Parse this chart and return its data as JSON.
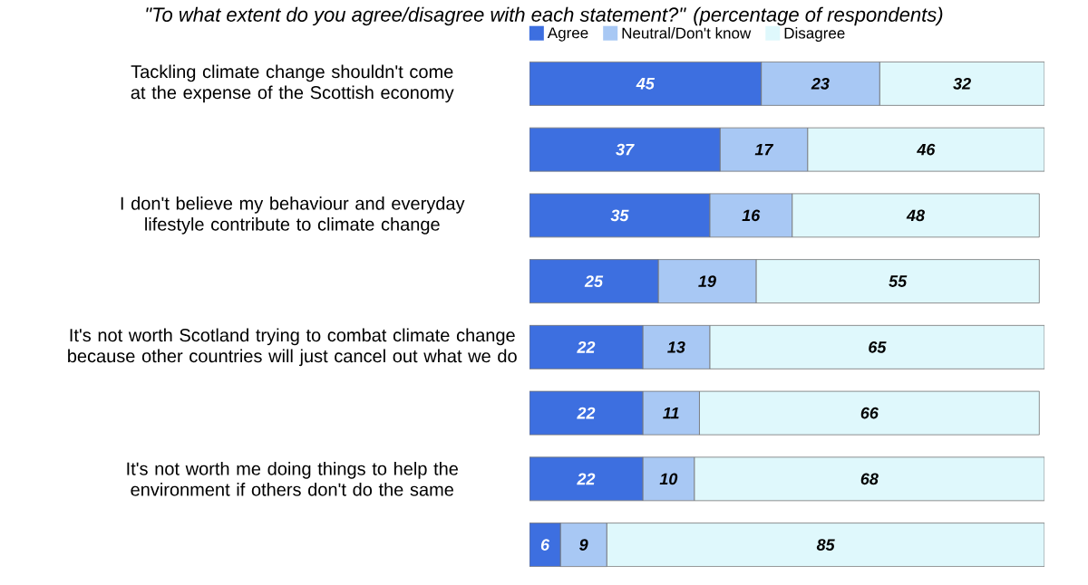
{
  "chart_data": {
    "type": "bar",
    "orientation": "horizontal",
    "stacked": true,
    "title": "\"To what extent do you agree/disagree with each statement?\" (percentage of respondents)",
    "categories": [
      "Tackling climate change shouldn't come at the expense of the Scottish economy",
      null,
      "I don't believe my behaviour and everyday lifestyle contribute to climate change",
      null,
      "It's not worth Scotland trying to combat climate change because other countries will just cancel out what we do",
      null,
      "It's not worth me doing things to help the environment if others don't do the same",
      null
    ],
    "series": [
      {
        "name": "Agree",
        "color": "#3d6fe0",
        "values": [
          45,
          37,
          35,
          25,
          22,
          22,
          22,
          6
        ]
      },
      {
        "name": "Neutral/Don't know",
        "color": "#a8c8f4",
        "values": [
          23,
          17,
          16,
          19,
          13,
          11,
          10,
          9
        ]
      },
      {
        "name": "Disagree",
        "color": "#dff8fc",
        "values": [
          32,
          46,
          48,
          55,
          65,
          66,
          68,
          85
        ]
      }
    ],
    "tick_labels": "y",
    "data_labels": true,
    "legend": "top"
  }
}
